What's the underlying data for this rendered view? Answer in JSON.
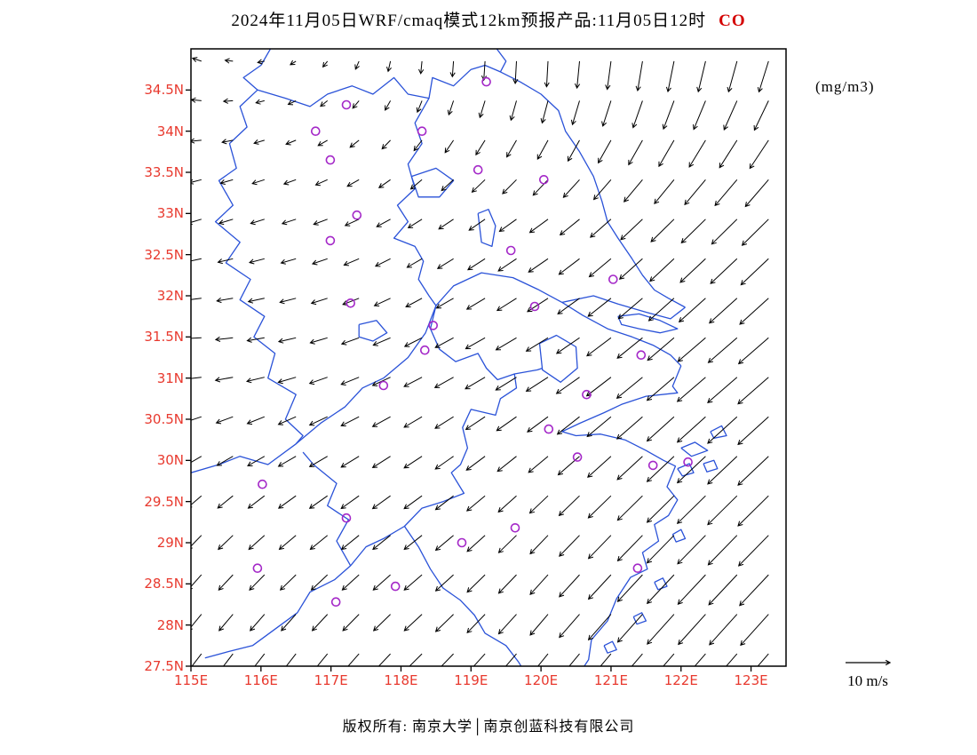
{
  "title": {
    "main": "2024年11月05日WRF/cmaq模式12km预报产品:11月05日12时",
    "species": "CO"
  },
  "units_label": "(mg/m3)",
  "reference_arrow": {
    "label": "10 m/s",
    "speed_ms": 10
  },
  "footer": {
    "text": "版权所有: 南京大学│南京创蓝科技有限公司"
  },
  "colors": {
    "axis_label": "#e8392e",
    "species": "#d40000",
    "map_line": "#2a52d8",
    "marker": "#a428c8",
    "arrow": "#000000",
    "frame": "#000000"
  },
  "axes": {
    "lon_range": [
      115.0,
      123.5
    ],
    "lat_range": [
      27.5,
      35.0
    ],
    "x_labels": [
      {
        "text": "115E",
        "lon": 115
      },
      {
        "text": "116E",
        "lon": 116
      },
      {
        "text": "117E",
        "lon": 117
      },
      {
        "text": "118E",
        "lon": 118
      },
      {
        "text": "119E",
        "lon": 119
      },
      {
        "text": "120E",
        "lon": 120
      },
      {
        "text": "121E",
        "lon": 121
      },
      {
        "text": "122E",
        "lon": 122
      },
      {
        "text": "123E",
        "lon": 123
      }
    ],
    "y_labels": [
      {
        "text": "34.5N",
        "lat": 34.5
      },
      {
        "text": "34N",
        "lat": 34
      },
      {
        "text": "33.5N",
        "lat": 33.5
      },
      {
        "text": "33N",
        "lat": 33
      },
      {
        "text": "32.5N",
        "lat": 32.5
      },
      {
        "text": "32N",
        "lat": 32
      },
      {
        "text": "31.5N",
        "lat": 31.5
      },
      {
        "text": "31N",
        "lat": 31
      },
      {
        "text": "30.5N",
        "lat": 30.5
      },
      {
        "text": "30N",
        "lat": 30
      },
      {
        "text": "29.5N",
        "lat": 29.5
      },
      {
        "text": "29N",
        "lat": 29
      },
      {
        "text": "28.5N",
        "lat": 28.5
      },
      {
        "text": "28N",
        "lat": 28
      },
      {
        "text": "27.5N",
        "lat": 27.5
      }
    ]
  },
  "map": {
    "boundaries": [
      [
        [
          119.35,
          35.02
        ],
        [
          119.5,
          34.85
        ],
        [
          119.42,
          34.72
        ],
        [
          119.7,
          34.6
        ],
        [
          120.0,
          34.45
        ],
        [
          120.25,
          34.25
        ],
        [
          120.35,
          34.0
        ],
        [
          120.55,
          33.75
        ],
        [
          120.75,
          33.45
        ],
        [
          120.87,
          33.15
        ],
        [
          120.95,
          32.9
        ],
        [
          121.1,
          32.7
        ],
        [
          121.3,
          32.45
        ],
        [
          121.45,
          32.25
        ],
        [
          121.62,
          32.07
        ],
        [
          121.82,
          31.97
        ],
        [
          122.06,
          31.86
        ]
      ],
      [
        [
          115.0,
          29.85
        ],
        [
          115.4,
          29.95
        ],
        [
          115.7,
          30.05
        ],
        [
          116.1,
          29.95
        ],
        [
          116.5,
          30.2
        ],
        [
          116.85,
          30.45
        ],
        [
          117.2,
          30.65
        ],
        [
          117.45,
          30.88
        ],
        [
          117.75,
          31.0
        ],
        [
          118.1,
          31.25
        ],
        [
          118.35,
          31.55
        ],
        [
          118.5,
          31.88
        ],
        [
          118.75,
          32.12
        ],
        [
          119.15,
          32.28
        ],
        [
          119.6,
          32.22
        ],
        [
          119.95,
          32.08
        ],
        [
          120.3,
          31.92
        ],
        [
          120.75,
          32.0
        ],
        [
          121.1,
          31.9
        ],
        [
          121.5,
          31.8
        ],
        [
          121.85,
          31.72
        ],
        [
          122.06,
          31.86
        ]
      ],
      [
        [
          120.3,
          31.92
        ],
        [
          120.6,
          31.76
        ],
        [
          120.95,
          31.6
        ],
        [
          121.3,
          31.5
        ],
        [
          121.6,
          31.4
        ],
        [
          121.85,
          31.28
        ],
        [
          122.0,
          31.15
        ]
      ],
      [
        [
          121.1,
          31.75
        ],
        [
          121.4,
          31.78
        ],
        [
          121.7,
          31.7
        ],
        [
          121.95,
          31.6
        ],
        [
          121.7,
          31.55
        ],
        [
          121.4,
          31.6
        ],
        [
          121.15,
          31.65
        ],
        [
          121.1,
          31.75
        ]
      ],
      [
        [
          122.0,
          31.15
        ],
        [
          121.88,
          30.9
        ],
        [
          121.95,
          30.82
        ],
        [
          121.5,
          30.78
        ],
        [
          121.15,
          30.68
        ],
        [
          120.9,
          30.58
        ],
        [
          120.55,
          30.45
        ],
        [
          120.3,
          30.35
        ],
        [
          120.5,
          30.3
        ],
        [
          120.85,
          30.32
        ],
        [
          121.2,
          30.25
        ],
        [
          121.5,
          30.12
        ],
        [
          121.75,
          30.0
        ],
        [
          121.92,
          29.93
        ],
        [
          121.8,
          29.68
        ],
        [
          121.95,
          29.52
        ],
        [
          121.82,
          29.33
        ],
        [
          121.62,
          29.22
        ],
        [
          121.68,
          29.02
        ],
        [
          121.45,
          28.88
        ],
        [
          121.52,
          28.68
        ],
        [
          121.28,
          28.58
        ],
        [
          121.08,
          28.32
        ],
        [
          120.95,
          28.05
        ],
        [
          120.72,
          27.82
        ],
        [
          120.68,
          27.58
        ],
        [
          120.58,
          27.45
        ]
      ],
      [
        [
          116.15,
          35.02
        ],
        [
          116.0,
          34.8
        ],
        [
          115.75,
          34.65
        ],
        [
          115.95,
          34.5
        ],
        [
          115.7,
          34.3
        ],
        [
          115.8,
          34.05
        ],
        [
          115.55,
          33.85
        ],
        [
          115.65,
          33.55
        ],
        [
          115.4,
          33.4
        ],
        [
          115.6,
          33.1
        ],
        [
          115.35,
          32.9
        ],
        [
          115.7,
          32.65
        ],
        [
          115.5,
          32.4
        ],
        [
          115.85,
          32.2
        ],
        [
          115.7,
          31.95
        ],
        [
          116.05,
          31.75
        ],
        [
          115.9,
          31.5
        ],
        [
          116.2,
          31.3
        ],
        [
          116.1,
          31.0
        ],
        [
          116.5,
          30.8
        ],
        [
          116.35,
          30.5
        ],
        [
          116.6,
          30.3
        ],
        [
          116.5,
          30.2
        ]
      ],
      [
        [
          115.95,
          34.5
        ],
        [
          116.35,
          34.4
        ],
        [
          116.7,
          34.3
        ],
        [
          116.95,
          34.45
        ],
        [
          117.3,
          34.55
        ],
        [
          117.6,
          34.45
        ],
        [
          117.9,
          34.65
        ],
        [
          118.1,
          34.45
        ],
        [
          118.4,
          34.4
        ],
        [
          118.45,
          34.65
        ],
        [
          118.75,
          34.55
        ],
        [
          119.0,
          34.75
        ],
        [
          119.2,
          34.8
        ],
        [
          119.42,
          34.72
        ]
      ],
      [
        [
          118.4,
          34.4
        ],
        [
          118.2,
          34.1
        ],
        [
          118.3,
          33.85
        ],
        [
          118.1,
          33.6
        ],
        [
          118.2,
          33.3
        ],
        [
          117.95,
          33.1
        ],
        [
          118.1,
          32.9
        ],
        [
          117.9,
          32.7
        ],
        [
          118.2,
          32.6
        ],
        [
          118.32,
          32.42
        ],
        [
          118.25,
          32.2
        ],
        [
          118.4,
          32.0
        ],
        [
          118.5,
          31.88
        ],
        [
          118.42,
          31.6
        ],
        [
          118.55,
          31.35
        ],
        [
          118.78,
          31.2
        ],
        [
          119.1,
          31.3
        ],
        [
          119.22,
          31.12
        ],
        [
          119.38,
          30.98
        ],
        [
          119.62,
          31.05
        ],
        [
          119.95,
          31.1
        ],
        [
          120.02,
          31.12
        ]
      ],
      [
        [
          119.62,
          31.05
        ],
        [
          119.65,
          30.88
        ],
        [
          119.42,
          30.75
        ],
        [
          119.35,
          30.55
        ],
        [
          119.0,
          30.62
        ],
        [
          118.88,
          30.4
        ],
        [
          118.95,
          30.15
        ],
        [
          118.85,
          29.95
        ],
        [
          118.72,
          29.85
        ],
        [
          118.9,
          29.6
        ],
        [
          118.6,
          29.5
        ],
        [
          118.3,
          29.42
        ],
        [
          118.05,
          29.2
        ],
        [
          117.75,
          29.05
        ],
        [
          117.5,
          28.95
        ],
        [
          117.28,
          28.72
        ],
        [
          117.05,
          28.55
        ],
        [
          116.7,
          28.4
        ],
        [
          116.52,
          28.15
        ],
        [
          116.2,
          27.95
        ],
        [
          115.88,
          27.75
        ],
        [
          115.55,
          27.68
        ],
        [
          115.2,
          27.6
        ]
      ],
      [
        [
          116.6,
          30.1
        ],
        [
          116.75,
          29.95
        ],
        [
          117.08,
          29.72
        ],
        [
          116.95,
          29.45
        ],
        [
          117.25,
          29.28
        ],
        [
          117.08,
          29.02
        ],
        [
          117.28,
          28.72
        ]
      ],
      [
        [
          118.05,
          29.2
        ],
        [
          118.25,
          28.95
        ],
        [
          118.42,
          28.68
        ],
        [
          118.6,
          28.45
        ],
        [
          118.85,
          28.3
        ],
        [
          119.05,
          28.12
        ],
        [
          119.2,
          27.9
        ],
        [
          119.5,
          27.75
        ],
        [
          119.68,
          27.55
        ],
        [
          119.75,
          27.45
        ]
      ],
      [
        [
          119.98,
          31.42
        ],
        [
          120.22,
          31.52
        ],
        [
          120.5,
          31.38
        ],
        [
          120.52,
          31.12
        ],
        [
          120.28,
          30.95
        ],
        [
          120.02,
          31.1
        ],
        [
          119.98,
          31.42
        ]
      ],
      [
        [
          118.15,
          33.45
        ],
        [
          118.5,
          33.55
        ],
        [
          118.75,
          33.4
        ],
        [
          118.55,
          33.2
        ],
        [
          118.25,
          33.2
        ],
        [
          118.15,
          33.45
        ]
      ],
      [
        [
          119.1,
          33.0
        ],
        [
          119.25,
          33.05
        ],
        [
          119.35,
          32.85
        ],
        [
          119.3,
          32.6
        ],
        [
          119.15,
          32.65
        ],
        [
          119.1,
          33.0
        ]
      ],
      [
        [
          117.4,
          31.65
        ],
        [
          117.65,
          31.7
        ],
        [
          117.8,
          31.55
        ],
        [
          117.6,
          31.45
        ],
        [
          117.4,
          31.5
        ],
        [
          117.4,
          31.65
        ]
      ]
    ],
    "islands": [
      [
        [
          122.0,
          30.15
        ],
        [
          122.2,
          30.22
        ],
        [
          122.38,
          30.12
        ],
        [
          122.15,
          30.05
        ],
        [
          122.0,
          30.15
        ]
      ],
      [
        [
          122.42,
          30.35
        ],
        [
          122.58,
          30.42
        ],
        [
          122.65,
          30.3
        ],
        [
          122.47,
          30.27
        ],
        [
          122.42,
          30.35
        ]
      ],
      [
        [
          121.95,
          29.9
        ],
        [
          122.12,
          29.96
        ],
        [
          122.18,
          29.85
        ],
        [
          122.02,
          29.81
        ],
        [
          121.95,
          29.9
        ]
      ],
      [
        [
          122.32,
          29.96
        ],
        [
          122.47,
          30.0
        ],
        [
          122.52,
          29.9
        ],
        [
          122.37,
          29.86
        ],
        [
          122.32,
          29.96
        ]
      ],
      [
        [
          121.88,
          29.1
        ],
        [
          122.0,
          29.16
        ],
        [
          122.06,
          29.05
        ],
        [
          121.93,
          29.01
        ],
        [
          121.88,
          29.1
        ]
      ],
      [
        [
          121.62,
          28.52
        ],
        [
          121.74,
          28.57
        ],
        [
          121.8,
          28.47
        ],
        [
          121.67,
          28.43
        ],
        [
          121.62,
          28.52
        ]
      ],
      [
        [
          121.32,
          28.1
        ],
        [
          121.44,
          28.15
        ],
        [
          121.5,
          28.05
        ],
        [
          121.37,
          28.01
        ],
        [
          121.32,
          28.1
        ]
      ],
      [
        [
          120.9,
          27.75
        ],
        [
          121.02,
          27.8
        ],
        [
          121.08,
          27.7
        ],
        [
          120.95,
          27.66
        ],
        [
          120.9,
          27.75
        ]
      ]
    ]
  },
  "stations": [
    [
      117.22,
      34.32
    ],
    [
      116.78,
      34.0
    ],
    [
      118.3,
      34.0
    ],
    [
      116.99,
      33.65
    ],
    [
      119.1,
      33.53
    ],
    [
      120.04,
      33.41
    ],
    [
      117.37,
      32.98
    ],
    [
      116.99,
      32.67
    ],
    [
      119.57,
      32.55
    ],
    [
      121.03,
      32.2
    ],
    [
      117.28,
      31.91
    ],
    [
      119.91,
      31.87
    ],
    [
      118.46,
      31.64
    ],
    [
      118.34,
      31.34
    ],
    [
      121.43,
      31.28
    ],
    [
      117.75,
      30.91
    ],
    [
      120.65,
      30.8
    ],
    [
      120.11,
      30.38
    ],
    [
      120.52,
      30.04
    ],
    [
      121.6,
      29.94
    ],
    [
      122.1,
      29.98
    ],
    [
      116.02,
      29.71
    ],
    [
      117.22,
      29.3
    ],
    [
      119.63,
      29.18
    ],
    [
      118.87,
      29.0
    ],
    [
      115.95,
      28.69
    ],
    [
      121.38,
      28.69
    ],
    [
      117.92,
      28.47
    ],
    [
      117.07,
      28.28
    ],
    [
      119.22,
      34.6
    ]
  ],
  "wind_field": {
    "control_lons": [
      115.0,
      116.7,
      118.4,
      120.1,
      121.8,
      123.5
    ],
    "control_lats": [
      35.0,
      33.1,
      31.25,
      29.4,
      27.5
    ],
    "u": [
      [
        -2,
        -1,
        0,
        0,
        -1,
        -2
      ],
      [
        -3,
        -3,
        -3,
        -4,
        -5,
        -6
      ],
      [
        -4,
        -4,
        -4,
        -5,
        -6,
        -7
      ],
      [
        -3,
        -4,
        -4,
        -4,
        -6,
        -7
      ],
      [
        -3,
        -3,
        -4,
        -4,
        -6,
        -6
      ]
    ],
    "v": [
      [
        1,
        -1,
        -3,
        -6,
        -7,
        -7
      ],
      [
        -1,
        -1,
        -2,
        -3,
        -5,
        -6
      ],
      [
        0,
        -1,
        -2,
        -3,
        -5,
        -6
      ],
      [
        -3,
        -3,
        -3,
        -4,
        -6,
        -7
      ],
      [
        -4,
        -4,
        -4,
        -5,
        -7,
        -7
      ]
    ],
    "grid": {
      "lon_start": 115.15,
      "lon_step": 0.45,
      "lon_count": 19,
      "lat_start": 34.85,
      "lat_step": 0.48,
      "lat_count": 16
    }
  }
}
